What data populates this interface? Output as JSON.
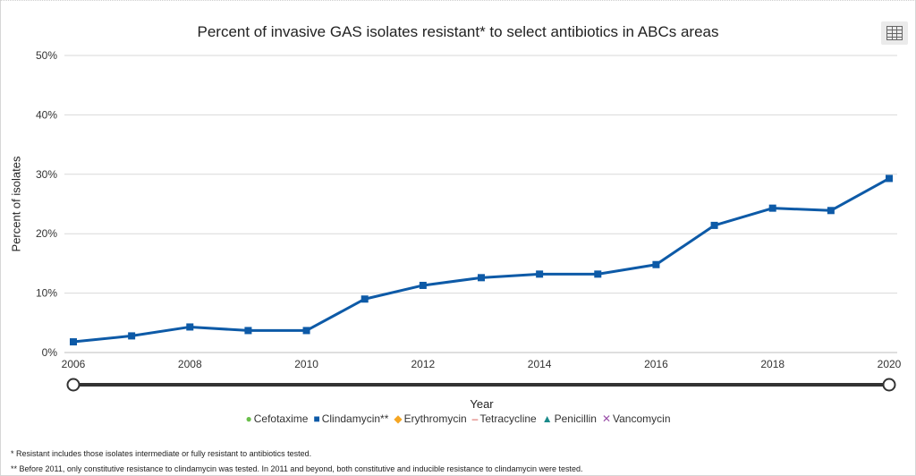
{
  "header": {
    "title": "Percent of invasive GAS isolates resistant* to select antibiotics in ABCs areas",
    "table_icon": "table-grid-icon"
  },
  "chart_data": {
    "type": "line",
    "title": "Percent of invasive GAS isolates resistant* to select antibiotics in ABCs areas",
    "xlabel": "Year",
    "ylabel": "Percent of isolates",
    "x_ticks": [
      "2006",
      "2008",
      "2010",
      "2012",
      "2014",
      "2016",
      "2018",
      "2020"
    ],
    "y_ticks": [
      "0%",
      "10%",
      "20%",
      "30%",
      "40%",
      "50%"
    ],
    "xlim": [
      2006,
      2020
    ],
    "ylim": [
      0,
      50
    ],
    "grid": "horizontal",
    "legend_position": "bottom",
    "series": [
      {
        "name": "Clindamycin**",
        "color": "#0d5aa7",
        "marker": "square",
        "x": [
          2006,
          2007,
          2008,
          2009,
          2010,
          2011,
          2012,
          2013,
          2014,
          2015,
          2016,
          2017,
          2018,
          2019,
          2020
        ],
        "values": [
          1.8,
          2.8,
          4.3,
          3.7,
          3.7,
          9.0,
          11.3,
          12.6,
          13.2,
          13.2,
          14.8,
          21.4,
          24.3,
          23.9,
          29.3
        ]
      }
    ]
  },
  "legend": [
    {
      "label": "Cefotaxime",
      "color": "#6abf4b",
      "marker": "●"
    },
    {
      "label": "Clindamycin**",
      "color": "#0d5aa7",
      "marker": "■"
    },
    {
      "label": "Erythromycin",
      "color": "#f5a623",
      "marker": "◆"
    },
    {
      "label": "Tetracycline",
      "color": "#d0443c",
      "marker": "–"
    },
    {
      "label": "Penicillin",
      "color": "#1a8a8a",
      "marker": "▲"
    },
    {
      "label": "Vancomycin",
      "color": "#9a4fa8",
      "marker": "✕"
    }
  ],
  "footnotes": {
    "resistant": "* Resistant includes those isolates intermediate or fully resistant to antibiotics tested.",
    "clindamycin": "** Before 2011, only constitutive resistance to clindamycin was tested. In 2011 and beyond, both constitutive and inducible resistance to clindamycin were tested."
  }
}
